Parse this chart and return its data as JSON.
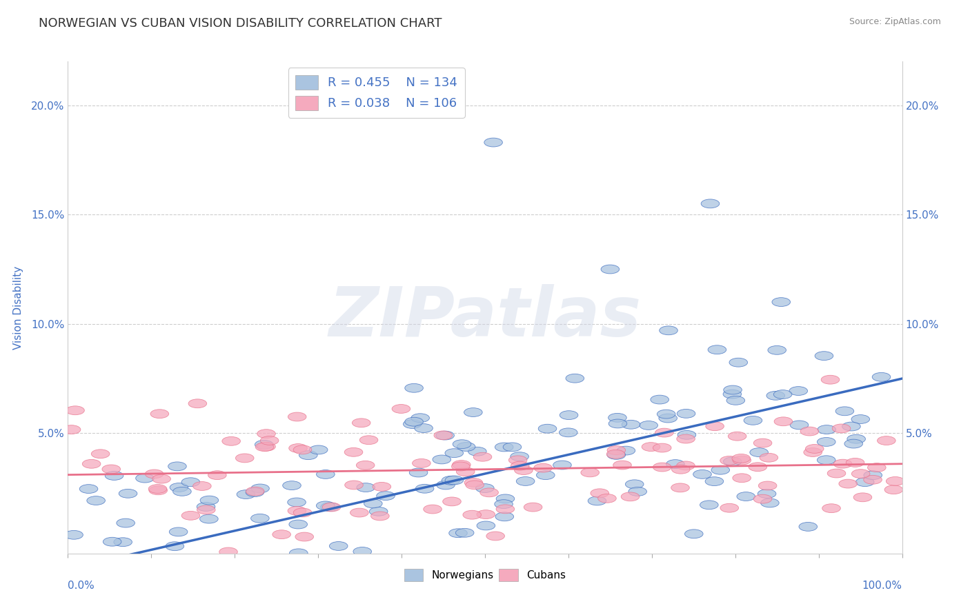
{
  "title": "NORWEGIAN VS CUBAN VISION DISABILITY CORRELATION CHART",
  "source": "Source: ZipAtlas.com",
  "ylabel": "Vision Disability",
  "watermark": "ZIPatlas",
  "norwegian_R": 0.455,
  "norwegian_N": 134,
  "cuban_R": 0.038,
  "cuban_N": 106,
  "norwegian_color": "#aac4e0",
  "cuban_color": "#f5aabe",
  "norwegian_line_color": "#3a6bbf",
  "cuban_line_color": "#e8708a",
  "title_color": "#333333",
  "axis_label_color": "#4472c4",
  "ylim": [
    -0.005,
    0.22
  ],
  "xlim": [
    0,
    1.0
  ],
  "yticks": [
    0.05,
    0.1,
    0.15,
    0.2
  ],
  "ytick_labels": [
    "5.0%",
    "10.0%",
    "15.0%",
    "20.0%"
  ],
  "background_color": "#ffffff",
  "grid_color": "#c8c8c8",
  "nor_line_start": -0.012,
  "nor_line_end": 0.075,
  "cub_line_start": 0.031,
  "cub_line_end": 0.036,
  "seed": 7
}
